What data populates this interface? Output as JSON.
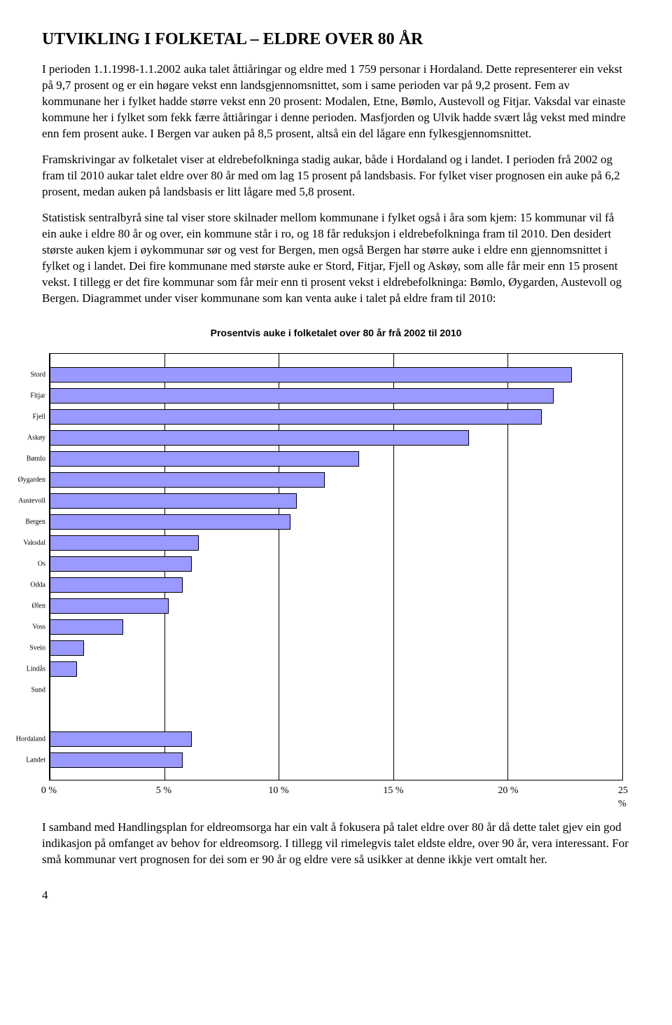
{
  "heading": "UTVIKLING I FOLKETAL – ELDRE OVER 80 ÅR",
  "paragraphs": {
    "p1": "I perioden 1.1.1998-1.1.2002 auka talet åttiåringar og eldre med 1 759 personar i Hordaland.  Dette representerer ein vekst på 9,7 prosent og er ein høgare vekst enn landsgjennomsnittet,  som i same perioden var på 9,2 prosent.  Fem av kommunane her i fylket hadde større vekst enn 20 prosent: Modalen,  Etne,  Bømlo,  Austevoll og Fitjar.   Vaksdal var einaste kommune her i fylket som fekk færre åttiåringar i denne perioden.  Masfjorden og Ulvik hadde svært låg vekst med mindre enn fem prosent auke.  I Bergen var auken på 8,5 prosent,  altså ein del lågare enn fylkesgjennomsnittet.",
    "p2": "Framskrivingar av folketalet viser at eldrebefolkninga stadig aukar,  både i Hordaland og i landet.   I perioden frå 2002 og fram til 2010 aukar talet eldre over 80 år med om lag 15 prosent på landsbasis.  For fylket viser prognosen ein auke på 6,2 prosent,  medan auken på landsbasis er litt lågare med 5,8 prosent.",
    "p3": "Statistisk sentralbyrå sine tal viser store skilnader mellom kommunane i fylket også i åra som kjem:  15 kommunar vil få ein auke i eldre 80 år og over,  ein kommune står i ro,  og 18 får reduksjon i eldrebefolkninga fram til 2010.  Den desidert største auken kjem i øykommunar sør og vest for Bergen,  men også Bergen har større auke i eldre enn gjennomsnittet i fylket og i landet.   Dei fire kommunane med største auke er Stord,  Fitjar,  Fjell og Askøy,  som alle får meir enn 15 prosent vekst.   I tillegg er det fire kommunar som får meir enn ti prosent vekst i eldrebefolkninga:  Bømlo,  Øygarden,  Austevoll og Bergen.   Diagrammet under viser kommunane som kan venta auke i talet på eldre fram til 2010:",
    "p4": "I samband med Handlingsplan for eldreomsorga har ein valt å fokusera på talet eldre over 80 år då dette talet gjev ein god indikasjon på omfanget av behov for eldreomsorg.   I tillegg vil rimelegvis talet eldste eldre, over 90 år, vera interessant. For små kommunar vert prognosen for dei som er 90 år og eldre vere så usikker at denne ikkje vert omtalt her."
  },
  "chart": {
    "type": "bar-horizontal",
    "title": "Prosentvis auke i folketalet over 80 år frå 2002 til 2010",
    "bar_color": "#9999ff",
    "bar_border": "#000000",
    "background_color": "#ffffff",
    "grid_color": "#000000",
    "x_min": 0,
    "x_max": 25,
    "x_ticks": [
      {
        "pos": 0,
        "label": "0 %"
      },
      {
        "pos": 5,
        "label": "5 %"
      },
      {
        "pos": 10,
        "label": "10 %"
      },
      {
        "pos": 15,
        "label": "15 %"
      },
      {
        "pos": 20,
        "label": "20 %"
      },
      {
        "pos": 25,
        "label": "25 %"
      }
    ],
    "rows": [
      {
        "label": "Stord",
        "value": 22.8
      },
      {
        "label": "Fitjar",
        "value": 22.0
      },
      {
        "label": "Fjell",
        "value": 21.5
      },
      {
        "label": "Askøy",
        "value": 18.3
      },
      {
        "label": "Bømlo",
        "value": 13.5
      },
      {
        "label": "Øygarden",
        "value": 12.0
      },
      {
        "label": "Austevoll",
        "value": 10.8
      },
      {
        "label": "Bergen",
        "value": 10.5
      },
      {
        "label": "Vaksdal",
        "value": 6.5
      },
      {
        "label": "Os",
        "value": 6.2
      },
      {
        "label": "Odda",
        "value": 5.8
      },
      {
        "label": "Ølen",
        "value": 5.2
      },
      {
        "label": "Voss",
        "value": 3.2
      },
      {
        "label": "Sveio",
        "value": 1.5
      },
      {
        "label": "Lindås",
        "value": 1.2
      },
      {
        "label": "Sund",
        "value": 0.0
      }
    ],
    "summary_rows": [
      {
        "label": "Hordaland",
        "value": 6.2
      },
      {
        "label": "Landet",
        "value": 5.8
      }
    ],
    "row_pitch": 30,
    "top_offset": 16,
    "group_gap": 40,
    "label_fontsize": 10,
    "tick_fontsize": 14
  },
  "page_number": "4"
}
